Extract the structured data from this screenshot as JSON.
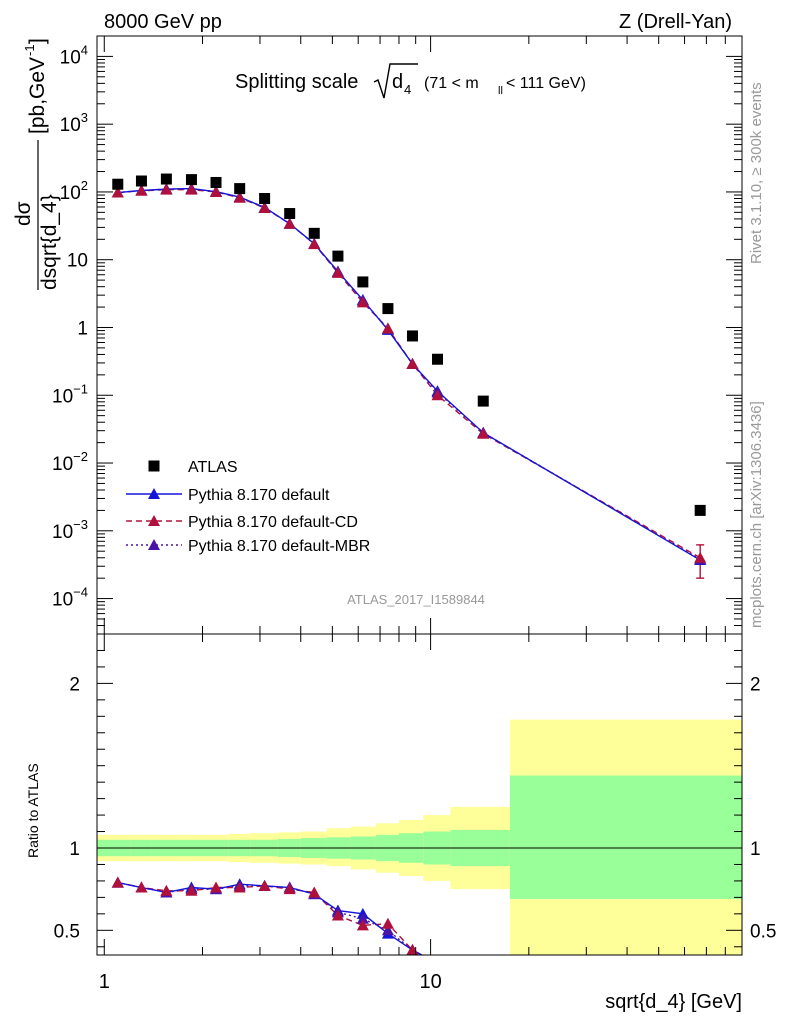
{
  "header": {
    "left": "8000 GeV pp",
    "right": "Z (Drell-Yan)"
  },
  "title": {
    "main": "Splitting scale",
    "sqrt_arg": "d",
    "sqrt_sub": "4",
    "range_open": "(71 < m",
    "range_sub": "ll",
    "range_close": " < 111 GeV)"
  },
  "side_labels": {
    "rivet": "Rivet 3.1.10, ≥ 300k events",
    "mcplots": "mcplots.cern.ch [arXiv:1306.3436]"
  },
  "analysis_id": "ATLAS_2017_I1589844",
  "y_title_num": "dσ",
  "y_title_den": "dsqrt{d_4}",
  "y_title_unit": "[pb,GeV",
  "y_title_unit_sup": "-1",
  "y_title_unit_close": "]",
  "ratio_ylabel": "Ratio to ATLAS",
  "xlabel": "sqrt{d_4} [GeV]",
  "colors": {
    "data": "#000000",
    "default": "#1515d8",
    "cd": "#b0103c",
    "mbr": "#4a14a8",
    "band_inner": "#99ff99",
    "band_outer": "#ffff99"
  },
  "chart_data": [
    {
      "type": "scatter",
      "xscale": "log",
      "yscale": "log",
      "xlim": [
        0.95,
        90
      ],
      "ylim": [
        3e-05,
        20000
      ],
      "x_ticks": [
        "1",
        "10"
      ],
      "y_ticks": [
        "10^-4",
        "10^-3",
        "10^-2",
        "10^-1",
        "1",
        "10",
        "10^2",
        "10^3",
        "10^4"
      ],
      "legend_position": "bottom-left",
      "x": [
        1.1,
        1.3,
        1.55,
        1.85,
        2.2,
        2.6,
        3.1,
        3.7,
        4.4,
        5.2,
        6.2,
        7.4,
        8.8,
        10.5,
        14.5,
        67
      ],
      "series": [
        {
          "name": "ATLAS",
          "style": "squares",
          "values": [
            130,
            145,
            155,
            152,
            138,
            112,
            80,
            48,
            24.5,
            11.3,
            4.7,
            1.9,
            0.75,
            0.34,
            0.082,
            0.002
          ]
        },
        {
          "name": "Pythia 8.170 default",
          "style": "solid line, triangles",
          "values": [
            98,
            105,
            110,
            112,
            101,
            84,
            59,
            34,
            17.2,
            6.7,
            2.55,
            0.92,
            0.29,
            0.115,
            0.028,
            0.00037
          ]
        },
        {
          "name": "Pythia 8.170 default-CD",
          "style": "dashed line, triangles",
          "values": [
            98,
            104,
            108,
            108,
            100,
            82,
            58,
            34,
            17.0,
            6.4,
            2.35,
            0.97,
            0.29,
            0.1,
            0.027,
            0.0004
          ]
        },
        {
          "name": "Pythia 8.170 default-MBR",
          "style": "dotted line, triangles",
          "values": [
            98,
            105,
            110,
            111,
            101,
            84,
            59,
            34,
            17.1,
            6.6,
            2.5,
            0.95,
            0.29,
            0.11,
            0.028,
            0.00038
          ]
        }
      ]
    },
    {
      "type": "line",
      "xscale": "log",
      "ylim": [
        0.35,
        2.3
      ],
      "y_ticks": [
        "0.5",
        "1",
        "2"
      ],
      "x": [
        1.1,
        1.3,
        1.55,
        1.85,
        2.2,
        2.6,
        3.1,
        3.7,
        4.4,
        5.2,
        6.2,
        7.4,
        8.8,
        10.5
      ],
      "series": [
        {
          "name": "Pythia 8.170 default",
          "values": [
            0.79,
            0.76,
            0.73,
            0.76,
            0.75,
            0.78,
            0.77,
            0.76,
            0.72,
            0.62,
            0.6,
            0.48,
            0.38,
            0.3
          ]
        },
        {
          "name": "Pythia 8.170 default-CD",
          "values": [
            0.79,
            0.76,
            0.74,
            0.74,
            0.76,
            0.76,
            0.77,
            0.75,
            0.73,
            0.59,
            0.53,
            0.54,
            0.38,
            0.3
          ]
        },
        {
          "name": "Pythia 8.170 default-MBR",
          "values": [
            0.79,
            0.76,
            0.73,
            0.75,
            0.75,
            0.77,
            0.77,
            0.76,
            0.72,
            0.61,
            0.57,
            0.5,
            0.38,
            0.3
          ]
        }
      ],
      "bands": {
        "edges": [
          0.95,
          1.2,
          1.4,
          1.7,
          2.0,
          2.4,
          2.8,
          3.4,
          4.0,
          4.8,
          5.7,
          6.8,
          8.0,
          9.5,
          11.5,
          17.5,
          90
        ],
        "inner_lo": [
          0.95,
          0.95,
          0.95,
          0.95,
          0.95,
          0.95,
          0.95,
          0.945,
          0.94,
          0.935,
          0.93,
          0.92,
          0.91,
          0.9,
          0.89,
          0.69
        ],
        "inner_hi": [
          1.05,
          1.05,
          1.05,
          1.05,
          1.05,
          1.05,
          1.05,
          1.055,
          1.06,
          1.065,
          1.07,
          1.08,
          1.09,
          1.1,
          1.11,
          1.44
        ],
        "outer_lo": [
          0.92,
          0.92,
          0.92,
          0.92,
          0.92,
          0.915,
          0.91,
          0.905,
          0.9,
          0.89,
          0.87,
          0.85,
          0.83,
          0.8,
          0.75,
          0.35
        ],
        "outer_hi": [
          1.08,
          1.08,
          1.08,
          1.08,
          1.08,
          1.085,
          1.09,
          1.095,
          1.1,
          1.12,
          1.13,
          1.15,
          1.17,
          1.2,
          1.25,
          1.78
        ]
      }
    }
  ]
}
